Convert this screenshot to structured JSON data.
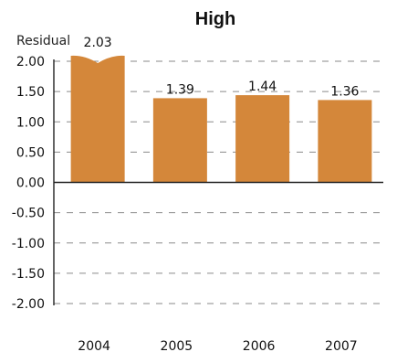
{
  "chart_data": {
    "type": "bar",
    "title": "High",
    "ylabel": "Residual",
    "xlabel": "",
    "categories": [
      "2004",
      "2005",
      "2006",
      "2007"
    ],
    "values": [
      2.03,
      1.39,
      1.44,
      1.36
    ],
    "value_labels": [
      "2.03",
      "1.39",
      "1.44",
      "1.36"
    ],
    "ylim": [
      -2.0,
      2.0
    ],
    "yticks": [
      2.0,
      1.5,
      1.0,
      0.5,
      0.0,
      -0.5,
      -1.0,
      -1.5,
      -2.0
    ],
    "ytick_labels": [
      "2.00",
      "1.50",
      "1.00",
      "0.50",
      "0.00",
      "-0.50",
      "-1.00",
      "-1.50",
      "-2.00"
    ],
    "grid": true,
    "truncated_bars": [
      "2004"
    ],
    "bar_color": "#D4873A"
  }
}
